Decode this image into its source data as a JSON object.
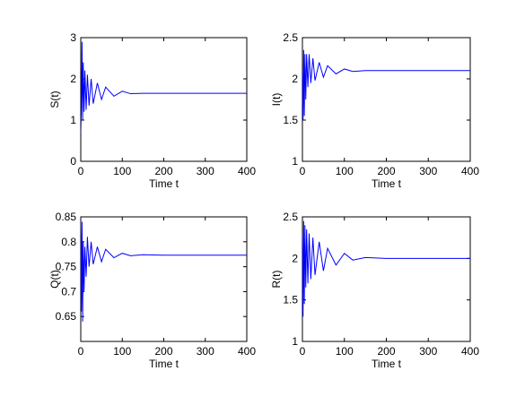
{
  "chart_data": [
    {
      "type": "line",
      "ylabel": "S(t)",
      "xlabel": "Time t",
      "xlim": [
        0,
        400
      ],
      "ylim": [
        0,
        3
      ],
      "xticks": [
        0,
        100,
        200,
        300,
        400
      ],
      "yticks": [
        0,
        1,
        2,
        3
      ],
      "grid": false,
      "color": "#0000ff",
      "series": [
        {
          "x": [
            0,
            1.5,
            3,
            4.5,
            6,
            8,
            10,
            13,
            16,
            20,
            25,
            30,
            40,
            50,
            60,
            80,
            100,
            120,
            150,
            200,
            250,
            300,
            350,
            400
          ],
          "y": [
            0.7,
            1.3,
            2.9,
            1.0,
            2.4,
            1.2,
            2.2,
            1.25,
            2.1,
            1.35,
            2.0,
            1.4,
            1.9,
            1.5,
            1.8,
            1.58,
            1.7,
            1.64,
            1.65,
            1.65,
            1.65,
            1.65,
            1.65,
            1.65
          ]
        }
      ]
    },
    {
      "type": "line",
      "ylabel": "I(t)",
      "xlabel": "Time t",
      "xlim": [
        0,
        400
      ],
      "ylim": [
        1,
        2.5
      ],
      "xticks": [
        0,
        100,
        200,
        300,
        400
      ],
      "yticks": [
        1,
        1.5,
        2,
        2.5
      ],
      "grid": false,
      "color": "#0000ff",
      "series": [
        {
          "x": [
            0,
            1.5,
            3,
            4.5,
            6,
            8,
            10,
            13,
            16,
            20,
            25,
            30,
            40,
            50,
            60,
            80,
            100,
            120,
            150,
            200,
            250,
            300,
            350,
            400
          ],
          "y": [
            2.1,
            1.5,
            2.35,
            1.55,
            2.3,
            1.75,
            2.3,
            1.9,
            2.3,
            1.95,
            2.25,
            1.98,
            2.2,
            2.02,
            2.16,
            2.06,
            2.12,
            2.09,
            2.1,
            2.1,
            2.1,
            2.1,
            2.1,
            2.1
          ]
        }
      ]
    },
    {
      "type": "line",
      "ylabel": "Q(t)",
      "xlabel": "Time t",
      "xlim": [
        0,
        400
      ],
      "ylim": [
        0.6,
        0.85
      ],
      "xticks": [
        0,
        100,
        200,
        300,
        400
      ],
      "yticks": [
        0.65,
        0.7,
        0.75,
        0.8,
        0.85
      ],
      "grid": false,
      "color": "#0000ff",
      "series": [
        {
          "x": [
            0,
            1.5,
            3,
            4.5,
            6,
            8,
            10,
            13,
            16,
            20,
            25,
            30,
            40,
            50,
            60,
            80,
            100,
            120,
            150,
            200,
            250,
            300,
            350,
            400
          ],
          "y": [
            0.84,
            0.66,
            0.84,
            0.64,
            0.8,
            0.7,
            0.79,
            0.73,
            0.81,
            0.75,
            0.8,
            0.755,
            0.79,
            0.76,
            0.785,
            0.768,
            0.777,
            0.772,
            0.774,
            0.773,
            0.773,
            0.773,
            0.773,
            0.773
          ]
        }
      ]
    },
    {
      "type": "line",
      "ylabel": "R(t)",
      "xlabel": "Time t",
      "xlim": [
        0,
        400
      ],
      "ylim": [
        1,
        2.5
      ],
      "xticks": [
        0,
        100,
        200,
        300,
        400
      ],
      "yticks": [
        1,
        1.5,
        2,
        2.5
      ],
      "grid": false,
      "color": "#0000ff",
      "series": [
        {
          "x": [
            0,
            1.5,
            3,
            4.5,
            6,
            8,
            10,
            13,
            16,
            20,
            25,
            30,
            40,
            50,
            60,
            80,
            100,
            120,
            150,
            200,
            250,
            300,
            350,
            400
          ],
          "y": [
            2.3,
            1.3,
            2.45,
            1.45,
            2.4,
            1.65,
            2.35,
            1.7,
            2.3,
            1.75,
            2.25,
            1.8,
            2.2,
            1.85,
            2.12,
            1.92,
            2.06,
            1.98,
            2.01,
            2.0,
            2.0,
            2.0,
            2.0,
            2.0
          ]
        }
      ]
    }
  ]
}
